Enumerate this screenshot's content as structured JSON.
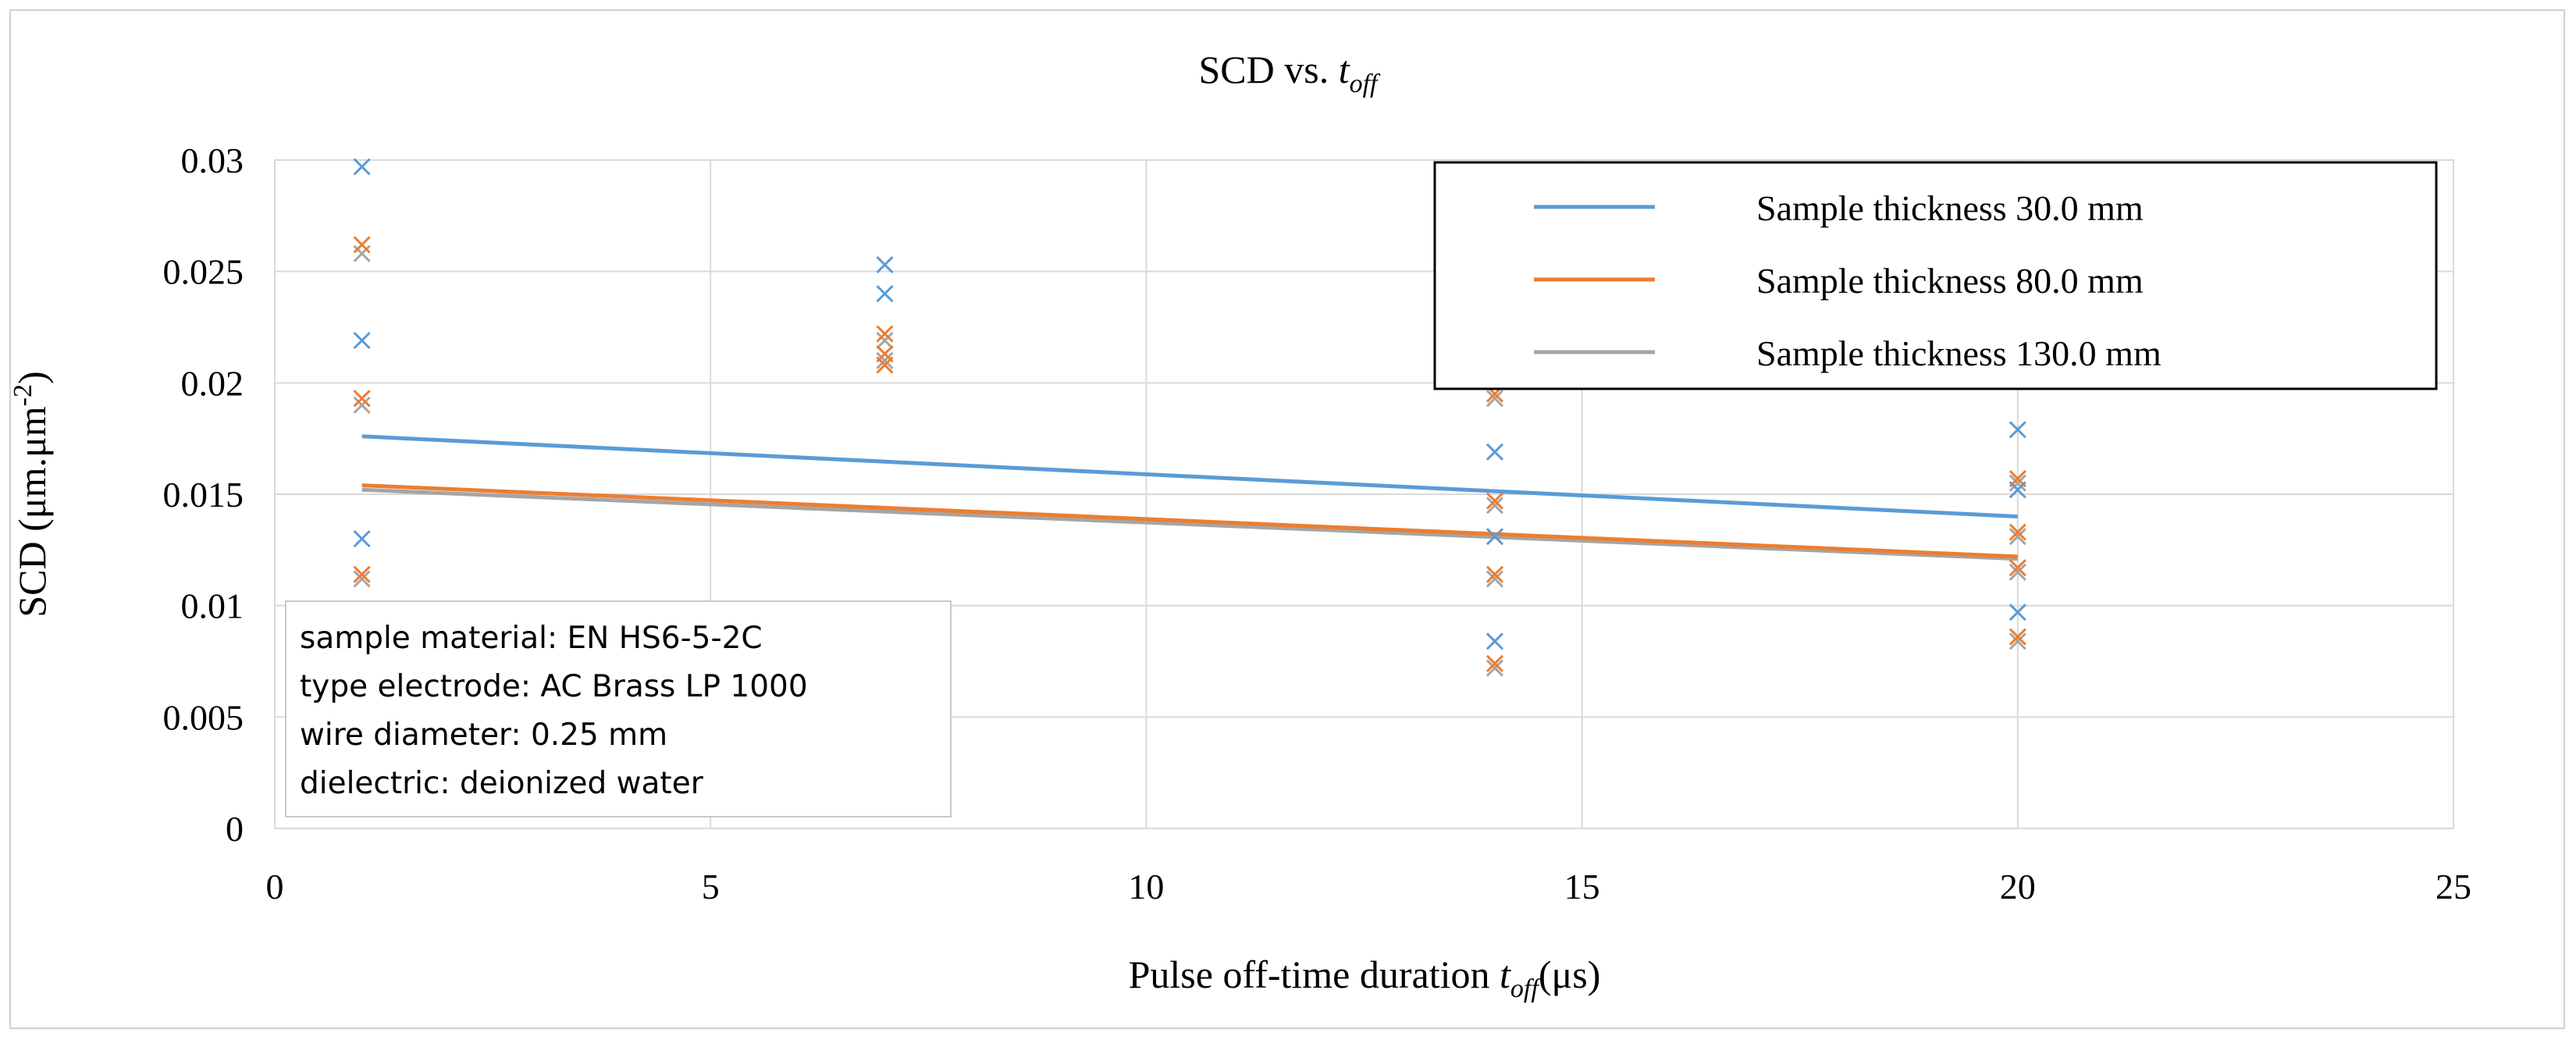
{
  "chart_data": {
    "type": "scatter",
    "title": "SCD vs. ",
    "title_var": "t",
    "title_var_sub": "off",
    "xlabel": "Pulse off-time  duration  ",
    "xlabel_var": "t",
    "xlabel_var_sub": "off",
    "xlabel_unit": "(μs)",
    "ylabel": "SCD (μm.μm",
    "ylabel_sup": "-2",
    "ylabel_close": ")",
    "xlim": [
      0,
      25
    ],
    "ylim": [
      0,
      0.03
    ],
    "x_ticks": [
      0,
      5,
      10,
      15,
      20,
      25
    ],
    "x_tick_labels": [
      "0",
      "5",
      "10",
      "15",
      "20",
      "25"
    ],
    "y_ticks": [
      0,
      0.005,
      0.01,
      0.015,
      0.02,
      0.025,
      0.03
    ],
    "y_tick_labels": [
      "0",
      "0.005",
      "0.01",
      "0.015",
      "0.02",
      "0.025",
      "0.03"
    ],
    "grid": true,
    "legend_position": "top-right",
    "series": [
      {
        "name": "Sample thickness 30.0 mm",
        "color": "#5B9BD5",
        "points": [
          [
            1,
            0.0297
          ],
          [
            1,
            0.0219
          ],
          [
            1,
            0.013
          ],
          [
            7,
            0.0253
          ],
          [
            7,
            0.024
          ],
          [
            14,
            0.0169
          ],
          [
            14,
            0.0131
          ],
          [
            14,
            0.0084
          ],
          [
            20,
            0.0179
          ],
          [
            20,
            0.0152
          ],
          [
            20,
            0.0097
          ]
        ],
        "trend": [
          [
            1,
            0.0176
          ],
          [
            20,
            0.014
          ]
        ]
      },
      {
        "name": "Sample thickness 80.0 mm",
        "color": "#ED7D31",
        "points": [
          [
            1,
            0.0262
          ],
          [
            1,
            0.0193
          ],
          [
            1,
            0.0114
          ],
          [
            7,
            0.0222
          ],
          [
            7,
            0.0213
          ],
          [
            7,
            0.0208
          ],
          [
            14,
            0.0195
          ],
          [
            14,
            0.0147
          ],
          [
            14,
            0.0114
          ],
          [
            14,
            0.0074
          ],
          [
            20,
            0.0157
          ],
          [
            20,
            0.0133
          ],
          [
            20,
            0.0117
          ],
          [
            20,
            0.0086
          ]
        ],
        "trend": [
          [
            1,
            0.0154
          ],
          [
            20,
            0.0122
          ]
        ]
      },
      {
        "name": "Sample thickness 130.0 mm",
        "color": "#A5A5A5",
        "points": [
          [
            1,
            0.0258
          ],
          [
            1,
            0.019
          ],
          [
            1,
            0.0112
          ],
          [
            7,
            0.0219
          ],
          [
            7,
            0.021
          ],
          [
            14,
            0.0193
          ],
          [
            14,
            0.0145
          ],
          [
            14,
            0.0112
          ],
          [
            14,
            0.0072
          ],
          [
            20,
            0.0155
          ],
          [
            20,
            0.0131
          ],
          [
            20,
            0.0115
          ],
          [
            20,
            0.0084
          ]
        ],
        "trend": [
          [
            1,
            0.0152
          ],
          [
            20,
            0.0121
          ]
        ]
      }
    ],
    "annotation": [
      "sample material: EN HS6-5-2C",
      "type electrode: AC Brass LP 1000",
      "wire diameter: 0.25 mm",
      "dielectric: deionized water"
    ]
  }
}
